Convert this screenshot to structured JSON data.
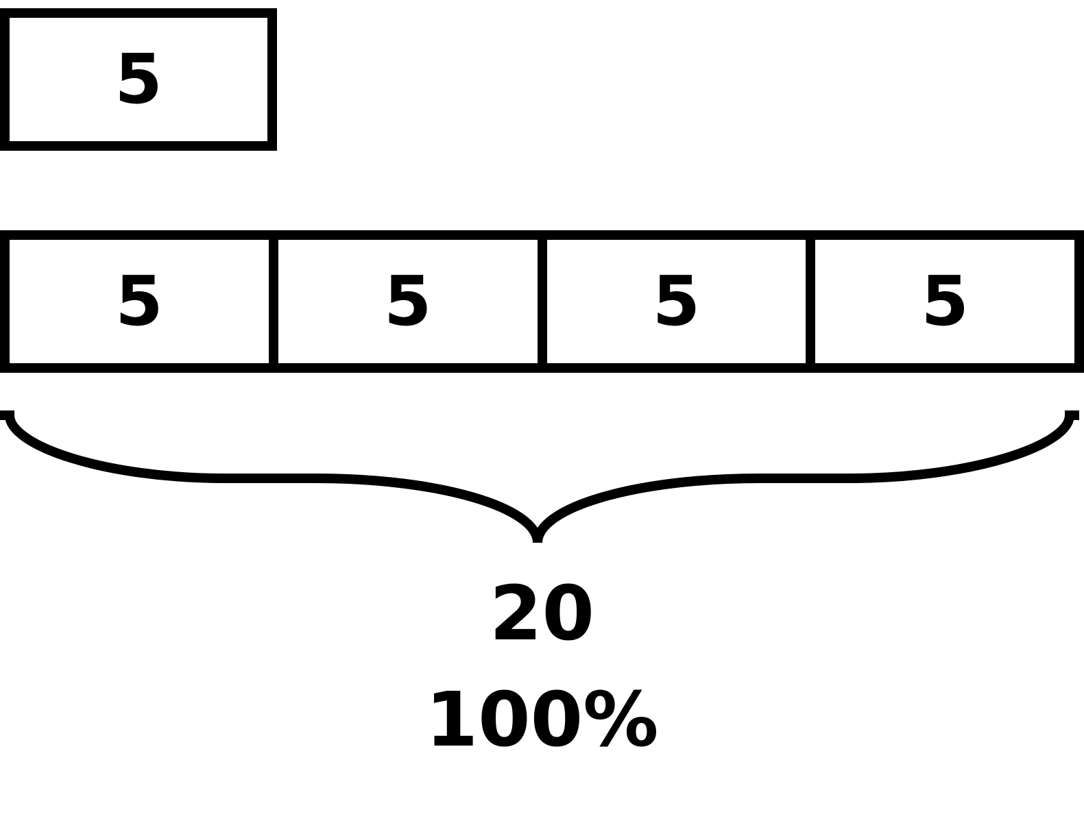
{
  "single_box": {
    "value": "5"
  },
  "bar": {
    "segments": [
      "5",
      "5",
      "5",
      "5"
    ]
  },
  "total": {
    "value": "20",
    "percent": "100%"
  }
}
